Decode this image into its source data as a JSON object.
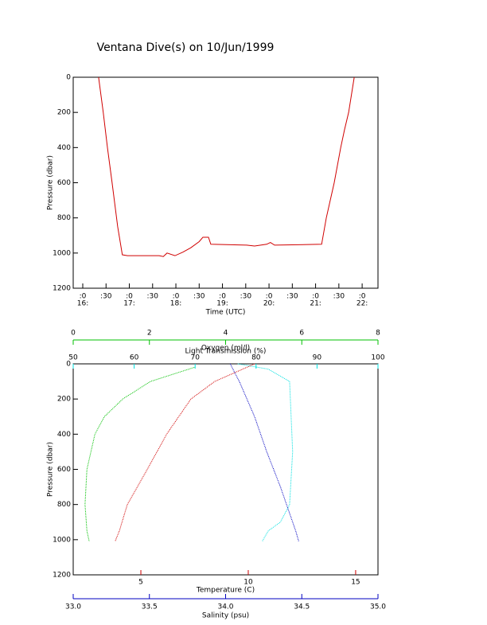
{
  "chart_data": [
    {
      "type": "line",
      "title": "Ventana Dive(s) on 10/Jun/1999",
      "xlabel": "Time (UTC)",
      "ylabel": "Pressure (dbar)",
      "xlim": [
        15.795,
        22.34
      ],
      "ylim": [
        0,
        1200
      ],
      "y_inverted": true,
      "xticks": [
        {
          "value": 16,
          "label": ":0",
          "label2": "16:"
        },
        {
          "value": 16.5,
          "label": ":30"
        },
        {
          "value": 17,
          "label": ":0",
          "label2": "17:"
        },
        {
          "value": 17.5,
          "label": ":30"
        },
        {
          "value": 18,
          "label": ":0",
          "label2": "18:"
        },
        {
          "value": 18.5,
          "label": ":30"
        },
        {
          "value": 19,
          "label": ":0",
          "label2": "19:"
        },
        {
          "value": 19.5,
          "label": ":30"
        },
        {
          "value": 20,
          "label": ":0",
          "label2": "20:"
        },
        {
          "value": 20.5,
          "label": ":30"
        },
        {
          "value": 21,
          "label": ":0",
          "label2": "21:"
        },
        {
          "value": 21.5,
          "label": ":30"
        },
        {
          "value": 22,
          "label": ":0",
          "label2": "22:"
        }
      ],
      "yticks": [
        0,
        200,
        400,
        600,
        800,
        1000,
        1200
      ],
      "series": [
        {
          "color": "#d00000",
          "x": [
            16.34,
            16.44,
            16.53,
            16.63,
            16.75,
            16.85,
            16.96,
            17.64,
            17.73,
            17.81,
            17.98,
            18.15,
            18.32,
            18.5,
            18.58,
            18.7,
            18.75,
            19.52,
            19.69,
            19.95,
            20.03,
            20.12,
            21.13,
            21.23,
            21.4,
            21.54,
            21.62,
            21.71,
            21.83
          ],
          "y": [
            0,
            200,
            400,
            600,
            850,
            1010,
            1015,
            1015,
            1020,
            1000,
            1015,
            995,
            970,
            935,
            910,
            910,
            950,
            955,
            960,
            950,
            940,
            955,
            950,
            800,
            600,
            400,
            300,
            200,
            0
          ]
        }
      ]
    },
    {
      "type": "profile",
      "ylabel": "Pressure (dbar)",
      "ylim": [
        0,
        1200
      ],
      "y_inverted": true,
      "yticks": [
        0,
        200,
        400,
        600,
        800,
        1000,
        1200
      ],
      "axes": [
        {
          "label": "Oxygen (ml/l)",
          "color": "#00c000",
          "xlim": [
            0,
            8
          ],
          "xticks": [
            0,
            2,
            4,
            6,
            8
          ]
        },
        {
          "label": "Light Transmission (%)",
          "color": "#00e0e0",
          "xlim": [
            50,
            100
          ],
          "xticks": [
            50,
            60,
            70,
            80,
            90,
            100
          ]
        },
        {
          "label": "Temperature (C)",
          "color": "#d00000",
          "xlim": [
            1.85,
            16.04
          ],
          "xticks": [
            5,
            10,
            15
          ]
        },
        {
          "label": "Salinity (psu)",
          "color": "#0000c0",
          "xlim": [
            33,
            35
          ],
          "xticks": [
            {
              "value": 33,
              "label": "33.0"
            },
            33.5,
            {
              "value": 34,
              "label": "34.0"
            },
            34.5,
            {
              "value": 35,
              "label": "35.0"
            }
          ]
        }
      ],
      "series": [
        {
          "axis": 0,
          "color": "#00c000",
          "x": [
            3.18,
            2.03,
            1.3,
            0.82,
            0.57,
            0.36,
            0.31,
            0.36,
            0.42
          ],
          "y": [
            20,
            100,
            200,
            300,
            400,
            600,
            800,
            950,
            1010
          ]
        },
        {
          "axis": 1,
          "color": "#00e0e0",
          "x": [
            77,
            82,
            85.5,
            86,
            85.5,
            84,
            82,
            81
          ],
          "y": [
            0,
            30,
            100,
            500,
            800,
            900,
            950,
            1010
          ]
        },
        {
          "axis": 2,
          "color": "#d00000",
          "x": [
            10.3,
            8.44,
            7.33,
            6.2,
            5.3,
            4.37,
            4.0,
            3.8
          ],
          "y": [
            0,
            100,
            200,
            400,
            600,
            800,
            950,
            1010
          ]
        },
        {
          "axis": 3,
          "color": "#0000c0",
          "x": [
            34.03,
            34.09,
            34.19,
            34.27,
            34.36,
            34.44,
            34.46,
            34.48
          ],
          "y": [
            0,
            100,
            300,
            500,
            700,
            900,
            950,
            1010
          ]
        }
      ]
    }
  ]
}
